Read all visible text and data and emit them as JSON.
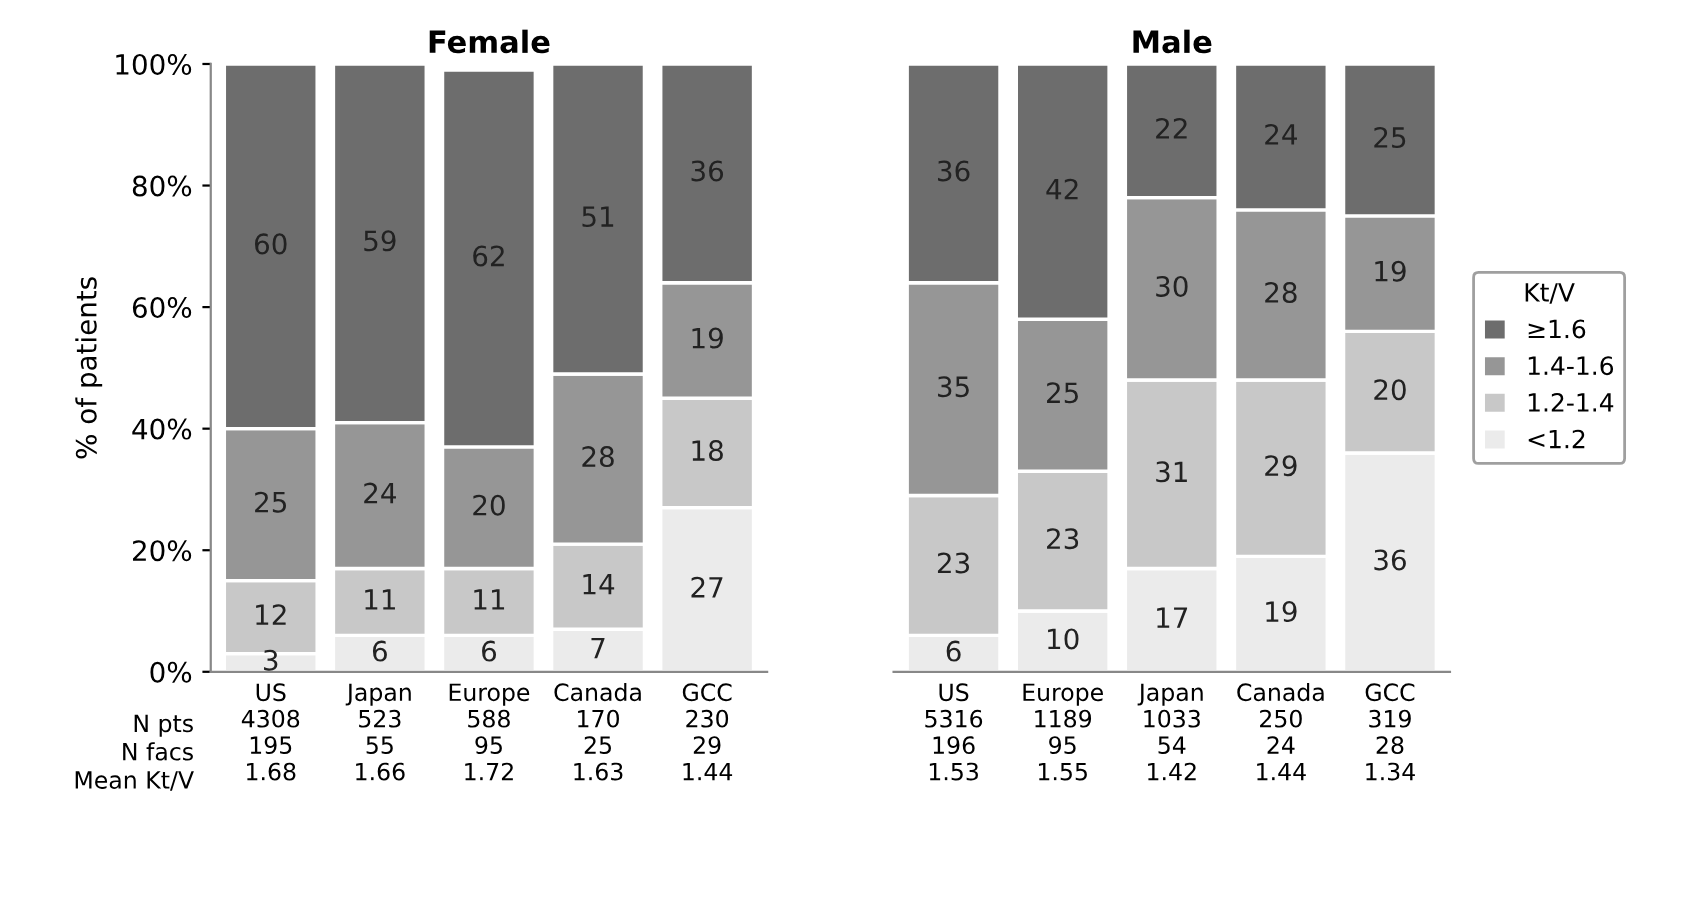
{
  "chart_data": [
    {
      "type": "bar",
      "stacked": true,
      "title": "Female",
      "ylabel": "% of patients",
      "categories": [
        "US\n4308\n195\n1.68",
        "Japan\n523\n55\n1.66",
        "Europe\n588\n95\n1.72",
        "Canada\n170\n25\n1.63",
        "GCC\n230\n29\n1.44"
      ],
      "series": [
        {
          "color": "#ebebeb",
          "values": [
            3,
            6,
            6,
            7,
            27
          ]
        },
        {
          "color": "#c8c8c8",
          "values": [
            12,
            11,
            11,
            14,
            18
          ]
        },
        {
          "color": "#969696",
          "values": [
            25,
            24,
            20,
            28,
            19
          ]
        },
        {
          "color": "#6d6d6d",
          "values": [
            60,
            59,
            62,
            51,
            36
          ]
        }
      ],
      "ylim": [
        0,
        100
      ],
      "yticks": [
        {
          "value": 0,
          "label": "0%"
        },
        {
          "value": 20,
          "label": "20%"
        },
        {
          "value": 40,
          "label": "40%"
        },
        {
          "value": 60,
          "label": "60%"
        },
        {
          "value": 80,
          "label": "80%"
        },
        {
          "value": 100,
          "label": "100%"
        }
      ],
      "data_labels": true,
      "grid": false,
      "legend": false,
      "annotations": [
        "N pts",
        "N facs",
        "Mean Kt/V"
      ]
    },
    {
      "type": "bar",
      "stacked": true,
      "title": "Male",
      "legend_title": "Kt/V",
      "categories": [
        "US\n5316\n196\n1.53",
        "Europe\n1189\n95\n1.55",
        "Japan\n1033\n54\n1.42",
        "Canada\n250\n24\n1.44",
        "GCC\n319\n28\n1.34"
      ],
      "series": [
        {
          "name": "<1.2",
          "color": "#ebebeb",
          "values": [
            6,
            10,
            17,
            19,
            36
          ]
        },
        {
          "name": "1.2-1.4",
          "color": "#c8c8c8",
          "values": [
            23,
            23,
            31,
            29,
            20
          ]
        },
        {
          "name": "1.4-1.6",
          "color": "#969696",
          "values": [
            35,
            25,
            30,
            28,
            19
          ]
        },
        {
          "name": "≥1.6",
          "color": "#6d6d6d",
          "values": [
            36,
            42,
            22,
            24,
            25
          ]
        }
      ],
      "ylim": [
        0,
        100
      ],
      "tick_labels": "x",
      "data_labels": true,
      "grid": false,
      "legend": "right"
    }
  ]
}
